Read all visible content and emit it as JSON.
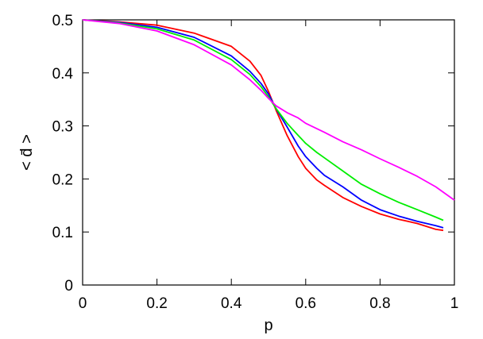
{
  "chart_data": {
    "type": "line",
    "xlabel": "p",
    "ylabel": "< d̄ >",
    "xlim": [
      0,
      1
    ],
    "ylim": [
      0,
      0.5
    ],
    "xticks": [
      0,
      0.2,
      0.4,
      0.6,
      0.8,
      1
    ],
    "xtick_labels": [
      "0",
      "0.2",
      "0.4",
      "0.6",
      "0.8",
      "1"
    ],
    "yticks": [
      0,
      0.1,
      0.2,
      0.3,
      0.4,
      0.5
    ],
    "ytick_labels": [
      "0",
      "0.1",
      "0.2",
      "0.3",
      "0.4",
      "0.5"
    ],
    "grid": false,
    "legend": "none",
    "series": [
      {
        "color": "#ff0000",
        "x": [
          0,
          0.1,
          0.2,
          0.3,
          0.4,
          0.45,
          0.48,
          0.5,
          0.52,
          0.55,
          0.58,
          0.6,
          0.63,
          0.65,
          0.7,
          0.75,
          0.8,
          0.85,
          0.9,
          0.95,
          0.97
        ],
        "y": [
          0.5,
          0.496,
          0.49,
          0.475,
          0.45,
          0.422,
          0.395,
          0.365,
          0.33,
          0.282,
          0.242,
          0.22,
          0.198,
          0.188,
          0.165,
          0.148,
          0.134,
          0.124,
          0.116,
          0.105,
          0.103
        ]
      },
      {
        "color": "#0000ff",
        "x": [
          0,
          0.1,
          0.2,
          0.3,
          0.4,
          0.45,
          0.48,
          0.5,
          0.52,
          0.55,
          0.58,
          0.6,
          0.63,
          0.65,
          0.7,
          0.75,
          0.8,
          0.85,
          0.9,
          0.95,
          0.97
        ],
        "y": [
          0.5,
          0.495,
          0.486,
          0.467,
          0.432,
          0.403,
          0.38,
          0.36,
          0.333,
          0.298,
          0.262,
          0.242,
          0.22,
          0.207,
          0.185,
          0.16,
          0.142,
          0.13,
          0.12,
          0.112,
          0.108
        ]
      },
      {
        "color": "#00ee00",
        "x": [
          0,
          0.1,
          0.2,
          0.3,
          0.4,
          0.45,
          0.48,
          0.5,
          0.52,
          0.55,
          0.58,
          0.6,
          0.63,
          0.65,
          0.7,
          0.75,
          0.8,
          0.85,
          0.9,
          0.95,
          0.97
        ],
        "y": [
          0.5,
          0.494,
          0.483,
          0.462,
          0.425,
          0.397,
          0.374,
          0.355,
          0.333,
          0.305,
          0.282,
          0.267,
          0.25,
          0.24,
          0.215,
          0.19,
          0.172,
          0.156,
          0.142,
          0.128,
          0.122
        ]
      },
      {
        "color": "#ff00ff",
        "x": [
          0,
          0.1,
          0.2,
          0.3,
          0.4,
          0.45,
          0.48,
          0.5,
          0.52,
          0.55,
          0.58,
          0.6,
          0.65,
          0.7,
          0.75,
          0.8,
          0.85,
          0.9,
          0.95,
          1.0
        ],
        "y": [
          0.5,
          0.493,
          0.479,
          0.453,
          0.415,
          0.387,
          0.367,
          0.352,
          0.338,
          0.325,
          0.315,
          0.305,
          0.288,
          0.27,
          0.255,
          0.238,
          0.222,
          0.205,
          0.185,
          0.16
        ]
      }
    ]
  }
}
